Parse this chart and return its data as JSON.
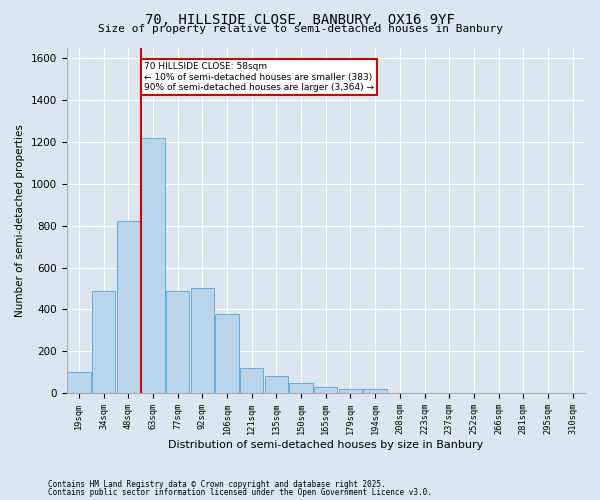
{
  "title_line1": "70, HILLSIDE CLOSE, BANBURY, OX16 9YF",
  "title_line2": "Size of property relative to semi-detached houses in Banbury",
  "xlabel": "Distribution of semi-detached houses by size in Banbury",
  "ylabel": "Number of semi-detached properties",
  "footnote1": "Contains HM Land Registry data © Crown copyright and database right 2025.",
  "footnote2": "Contains public sector information licensed under the Open Government Licence v3.0.",
  "bin_labels": [
    "19sqm",
    "34sqm",
    "48sqm",
    "63sqm",
    "77sqm",
    "92sqm",
    "106sqm",
    "121sqm",
    "135sqm",
    "150sqm",
    "165sqm",
    "179sqm",
    "194sqm",
    "208sqm",
    "223sqm",
    "237sqm",
    "252sqm",
    "266sqm",
    "281sqm",
    "295sqm",
    "310sqm"
  ],
  "bar_values": [
    100,
    490,
    820,
    1220,
    490,
    500,
    380,
    120,
    80,
    50,
    30,
    20,
    20,
    0,
    0,
    0,
    0,
    0,
    0,
    0,
    0
  ],
  "bar_color": "#bad4eb",
  "bar_edge_color": "#6aaad4",
  "background_color": "#dce6f1",
  "plot_bg_color": "#dce6f1",
  "grid_color": "#ffffff",
  "ylim": [
    0,
    1650
  ],
  "yticks": [
    0,
    200,
    400,
    600,
    800,
    1000,
    1200,
    1400,
    1600
  ],
  "red_line_color": "#cc0000",
  "annotation_title": "70 HILLSIDE CLOSE: 58sqm",
  "annotation_line1": "← 10% of semi-detached houses are smaller (383)",
  "annotation_line2": "90% of semi-detached houses are larger (3,364) →",
  "annotation_box_color": "#cc0000",
  "property_bin": 2
}
